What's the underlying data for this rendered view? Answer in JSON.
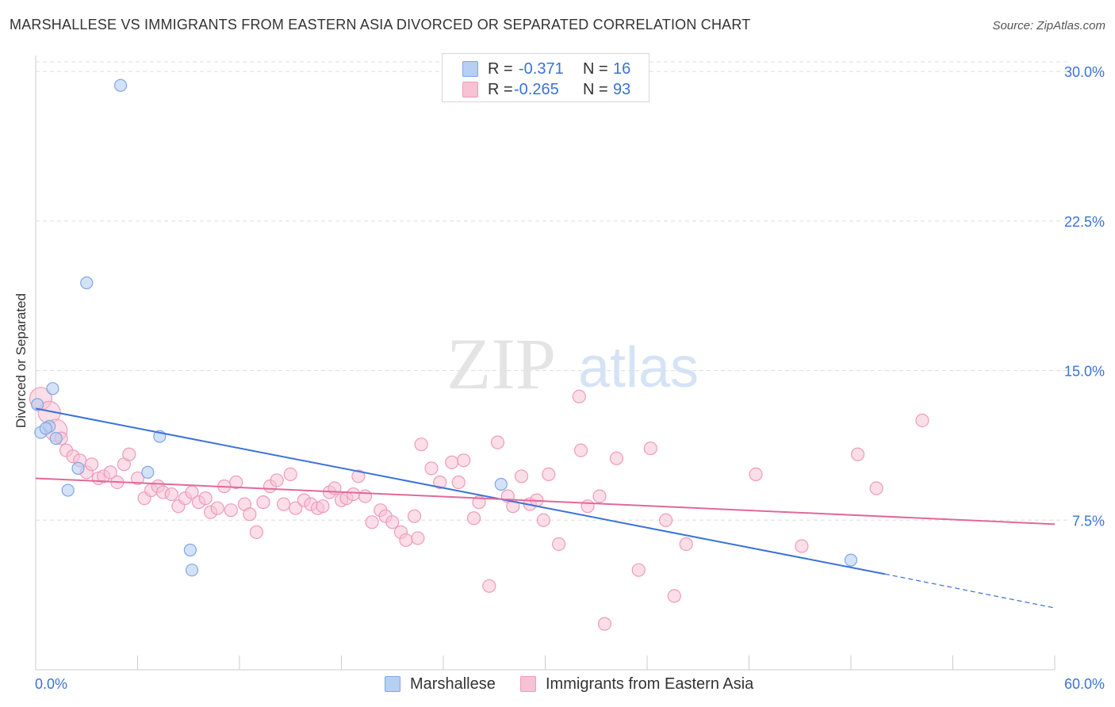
{
  "title": "MARSHALLESE VS IMMIGRANTS FROM EASTERN ASIA DIVORCED OR SEPARATED CORRELATION CHART",
  "source": "Source: ZipAtlas.com",
  "watermark": {
    "zip": "ZIP",
    "atlas": "atlas"
  },
  "legend_stats": [
    {
      "r_label": "R =",
      "r_value": "-0.371",
      "n_label": "N =",
      "n_value": "16"
    },
    {
      "r_label": "R =",
      "r_value": "-0.265",
      "n_label": "N =",
      "n_value": "93"
    }
  ],
  "colors": {
    "blue": "#3a72d8",
    "blue_fill": "#b7cff2",
    "blue_edge": "#7fa6e6",
    "pink": "#e2689a",
    "pink_fill": "#f7c2d4",
    "pink_edge": "#ee9bbb",
    "grid": "#dddddd",
    "tick_label": "#3a72d8"
  },
  "chart_data": {
    "type": "scatter",
    "title": "MARSHALLESE VS IMMIGRANTS FROM EASTERN ASIA DIVORCED OR SEPARATED CORRELATION CHART",
    "xlabel": "",
    "ylabel": "Divorced or Separated",
    "xlim": [
      0,
      60
    ],
    "ylim": [
      0,
      30.8
    ],
    "x_tick_labels": [
      "0.0%",
      "60.0%"
    ],
    "y_ticks": [
      7.5,
      15.0,
      22.5,
      30.0
    ],
    "y_tick_labels": [
      "7.5%",
      "15.0%",
      "22.5%",
      "30.0%"
    ],
    "grid": "horizontal dashed",
    "legend_position": "bottom",
    "series": [
      {
        "name": "Marshallese",
        "color": "#3a72d8",
        "points": [
          [
            0.1,
            13.3
          ],
          [
            0.3,
            11.9
          ],
          [
            0.8,
            12.2
          ],
          [
            1.0,
            14.1
          ],
          [
            1.2,
            11.6
          ],
          [
            1.9,
            9.0
          ],
          [
            2.5,
            10.1
          ],
          [
            3.0,
            19.4
          ],
          [
            5.0,
            29.3
          ],
          [
            6.6,
            9.9
          ],
          [
            7.3,
            11.7
          ],
          [
            9.1,
            6.0
          ],
          [
            9.2,
            5.0
          ],
          [
            27.4,
            9.3
          ],
          [
            48.0,
            5.5
          ],
          [
            0.6,
            12.1
          ]
        ],
        "trend": {
          "x_start": 0,
          "y_start": 13.1,
          "x_solid_end": 50,
          "y_solid_end": 4.8,
          "x_end": 60,
          "y_end": 3.1
        }
      },
      {
        "name": "Immigrants from Eastern Asia",
        "color": "#e2689a",
        "points": [
          [
            0.3,
            13.6
          ],
          [
            0.8,
            12.9
          ],
          [
            1.2,
            12.0
          ],
          [
            1.5,
            11.6
          ],
          [
            1.8,
            11.0
          ],
          [
            2.2,
            10.7
          ],
          [
            2.6,
            10.5
          ],
          [
            3.0,
            9.9
          ],
          [
            3.3,
            10.3
          ],
          [
            3.7,
            9.6
          ],
          [
            4.0,
            9.7
          ],
          [
            4.4,
            9.9
          ],
          [
            4.8,
            9.4
          ],
          [
            5.2,
            10.3
          ],
          [
            5.5,
            10.8
          ],
          [
            6.0,
            9.6
          ],
          [
            6.4,
            8.6
          ],
          [
            6.8,
            9.0
          ],
          [
            7.2,
            9.2
          ],
          [
            7.5,
            8.9
          ],
          [
            8.0,
            8.8
          ],
          [
            8.4,
            8.2
          ],
          [
            8.8,
            8.6
          ],
          [
            9.2,
            8.9
          ],
          [
            9.6,
            8.4
          ],
          [
            10.0,
            8.6
          ],
          [
            10.3,
            7.9
          ],
          [
            10.7,
            8.1
          ],
          [
            11.1,
            9.2
          ],
          [
            11.5,
            8.0
          ],
          [
            11.8,
            9.4
          ],
          [
            12.3,
            8.3
          ],
          [
            12.6,
            7.8
          ],
          [
            13.0,
            6.9
          ],
          [
            13.4,
            8.4
          ],
          [
            13.8,
            9.2
          ],
          [
            14.2,
            9.5
          ],
          [
            14.6,
            8.3
          ],
          [
            15.0,
            9.8
          ],
          [
            15.3,
            8.1
          ],
          [
            15.8,
            8.5
          ],
          [
            16.2,
            8.3
          ],
          [
            16.6,
            8.1
          ],
          [
            16.9,
            8.2
          ],
          [
            17.3,
            8.9
          ],
          [
            17.6,
            9.1
          ],
          [
            18.0,
            8.5
          ],
          [
            18.3,
            8.6
          ],
          [
            18.7,
            8.8
          ],
          [
            19.0,
            9.7
          ],
          [
            19.4,
            8.7
          ],
          [
            19.8,
            7.4
          ],
          [
            20.3,
            8.0
          ],
          [
            20.6,
            7.7
          ],
          [
            21.0,
            7.4
          ],
          [
            21.5,
            6.9
          ],
          [
            21.8,
            6.5
          ],
          [
            22.3,
            7.7
          ],
          [
            22.5,
            6.6
          ],
          [
            22.7,
            11.3
          ],
          [
            23.3,
            10.1
          ],
          [
            23.8,
            9.4
          ],
          [
            24.5,
            10.4
          ],
          [
            24.9,
            9.4
          ],
          [
            25.2,
            10.5
          ],
          [
            25.8,
            7.6
          ],
          [
            26.1,
            8.4
          ],
          [
            26.7,
            4.2
          ],
          [
            27.2,
            11.4
          ],
          [
            27.8,
            8.7
          ],
          [
            28.1,
            8.2
          ],
          [
            28.6,
            9.7
          ],
          [
            29.1,
            8.3
          ],
          [
            29.5,
            8.5
          ],
          [
            29.9,
            7.5
          ],
          [
            30.2,
            9.8
          ],
          [
            30.8,
            6.3
          ],
          [
            32.0,
            13.7
          ],
          [
            32.1,
            11.0
          ],
          [
            32.5,
            8.2
          ],
          [
            33.2,
            8.7
          ],
          [
            34.2,
            10.6
          ],
          [
            35.5,
            5.0
          ],
          [
            36.2,
            11.1
          ],
          [
            37.1,
            7.5
          ],
          [
            37.6,
            3.7
          ],
          [
            38.3,
            6.3
          ],
          [
            42.4,
            9.8
          ],
          [
            45.1,
            6.2
          ],
          [
            48.4,
            10.8
          ],
          [
            49.5,
            9.1
          ],
          [
            52.2,
            12.5
          ],
          [
            33.5,
            2.3
          ]
        ],
        "trend": {
          "x_start": 0,
          "y_start": 9.6,
          "x_end": 60,
          "y_end": 7.3
        }
      }
    ]
  }
}
